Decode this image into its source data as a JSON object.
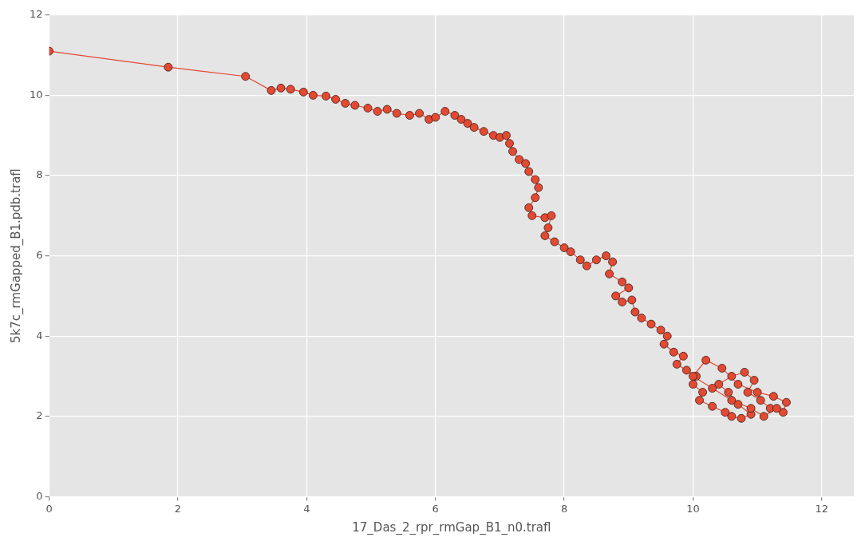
{
  "chart_data": {
    "type": "line",
    "xlabel": "17_Das_2_rpr_rmGap_B1_n0.trafl",
    "ylabel": "5k7c_rmGapped_B1.pdb.trafl",
    "xlim": [
      0,
      12.5
    ],
    "ylim": [
      0,
      12
    ],
    "xticks": [
      0,
      2,
      4,
      6,
      8,
      10,
      12
    ],
    "yticks": [
      0,
      2,
      4,
      6,
      8,
      10,
      12
    ],
    "grid": true,
    "marker": "circle",
    "line_style": "solid",
    "series": [
      {
        "color": "#e24a33",
        "x": [
          0,
          1.85,
          3.05,
          3.45,
          3.6,
          3.75,
          3.95,
          4.1,
          4.3,
          4.45,
          4.6,
          4.75,
          4.95,
          5.1,
          5.25,
          5.4,
          5.6,
          5.75,
          5.9,
          6.0,
          6.15,
          6.3,
          6.4,
          6.5,
          6.6,
          6.75,
          6.9,
          7.0,
          7.1,
          7.15,
          7.2,
          7.3,
          7.4,
          7.45,
          7.55,
          7.6,
          7.55,
          7.45,
          7.5,
          7.7,
          7.8,
          7.75,
          7.7,
          7.85,
          8.0,
          8.1,
          8.25,
          8.35,
          8.5,
          8.65,
          8.75,
          8.7,
          8.9,
          9.0,
          8.8,
          8.9,
          9.05,
          9.1,
          9.2,
          9.35,
          9.5,
          9.6,
          9.55,
          9.7,
          9.85,
          9.75,
          9.9,
          10.05,
          10.0,
          10.15,
          10.1,
          10.3,
          10.5,
          10.6,
          10.75,
          10.9,
          10.7,
          10.55,
          10.4,
          10.6,
          10.8,
          10.95,
          10.85,
          11.05,
          11.2,
          11.4,
          11.45,
          11.25,
          11.0,
          10.7,
          10.45,
          10.2,
          10.0,
          10.3,
          10.6,
          10.9,
          11.1,
          11.3
        ],
        "values": [
          11.1,
          10.7,
          10.47,
          10.12,
          10.18,
          10.15,
          10.08,
          10.0,
          9.98,
          9.9,
          9.8,
          9.75,
          9.68,
          9.6,
          9.65,
          9.55,
          9.5,
          9.55,
          9.4,
          9.45,
          9.6,
          9.5,
          9.4,
          9.3,
          9.2,
          9.1,
          9.0,
          8.95,
          9.0,
          8.8,
          8.6,
          8.4,
          8.3,
          8.1,
          7.9,
          7.7,
          7.45,
          7.2,
          7.0,
          6.95,
          7.0,
          6.7,
          6.5,
          6.35,
          6.2,
          6.1,
          5.9,
          5.75,
          5.9,
          6.0,
          5.85,
          5.55,
          5.35,
          5.2,
          5.0,
          4.85,
          4.9,
          4.6,
          4.45,
          4.3,
          4.15,
          4.0,
          3.8,
          3.6,
          3.5,
          3.3,
          3.15,
          3.0,
          2.8,
          2.6,
          2.4,
          2.25,
          2.1,
          2.0,
          1.95,
          2.05,
          2.3,
          2.6,
          2.8,
          3.0,
          3.1,
          2.9,
          2.6,
          2.4,
          2.2,
          2.1,
          2.35,
          2.5,
          2.6,
          2.8,
          3.2,
          3.4,
          3.0,
          2.7,
          2.4,
          2.2,
          2.0,
          2.2
        ]
      }
    ]
  }
}
